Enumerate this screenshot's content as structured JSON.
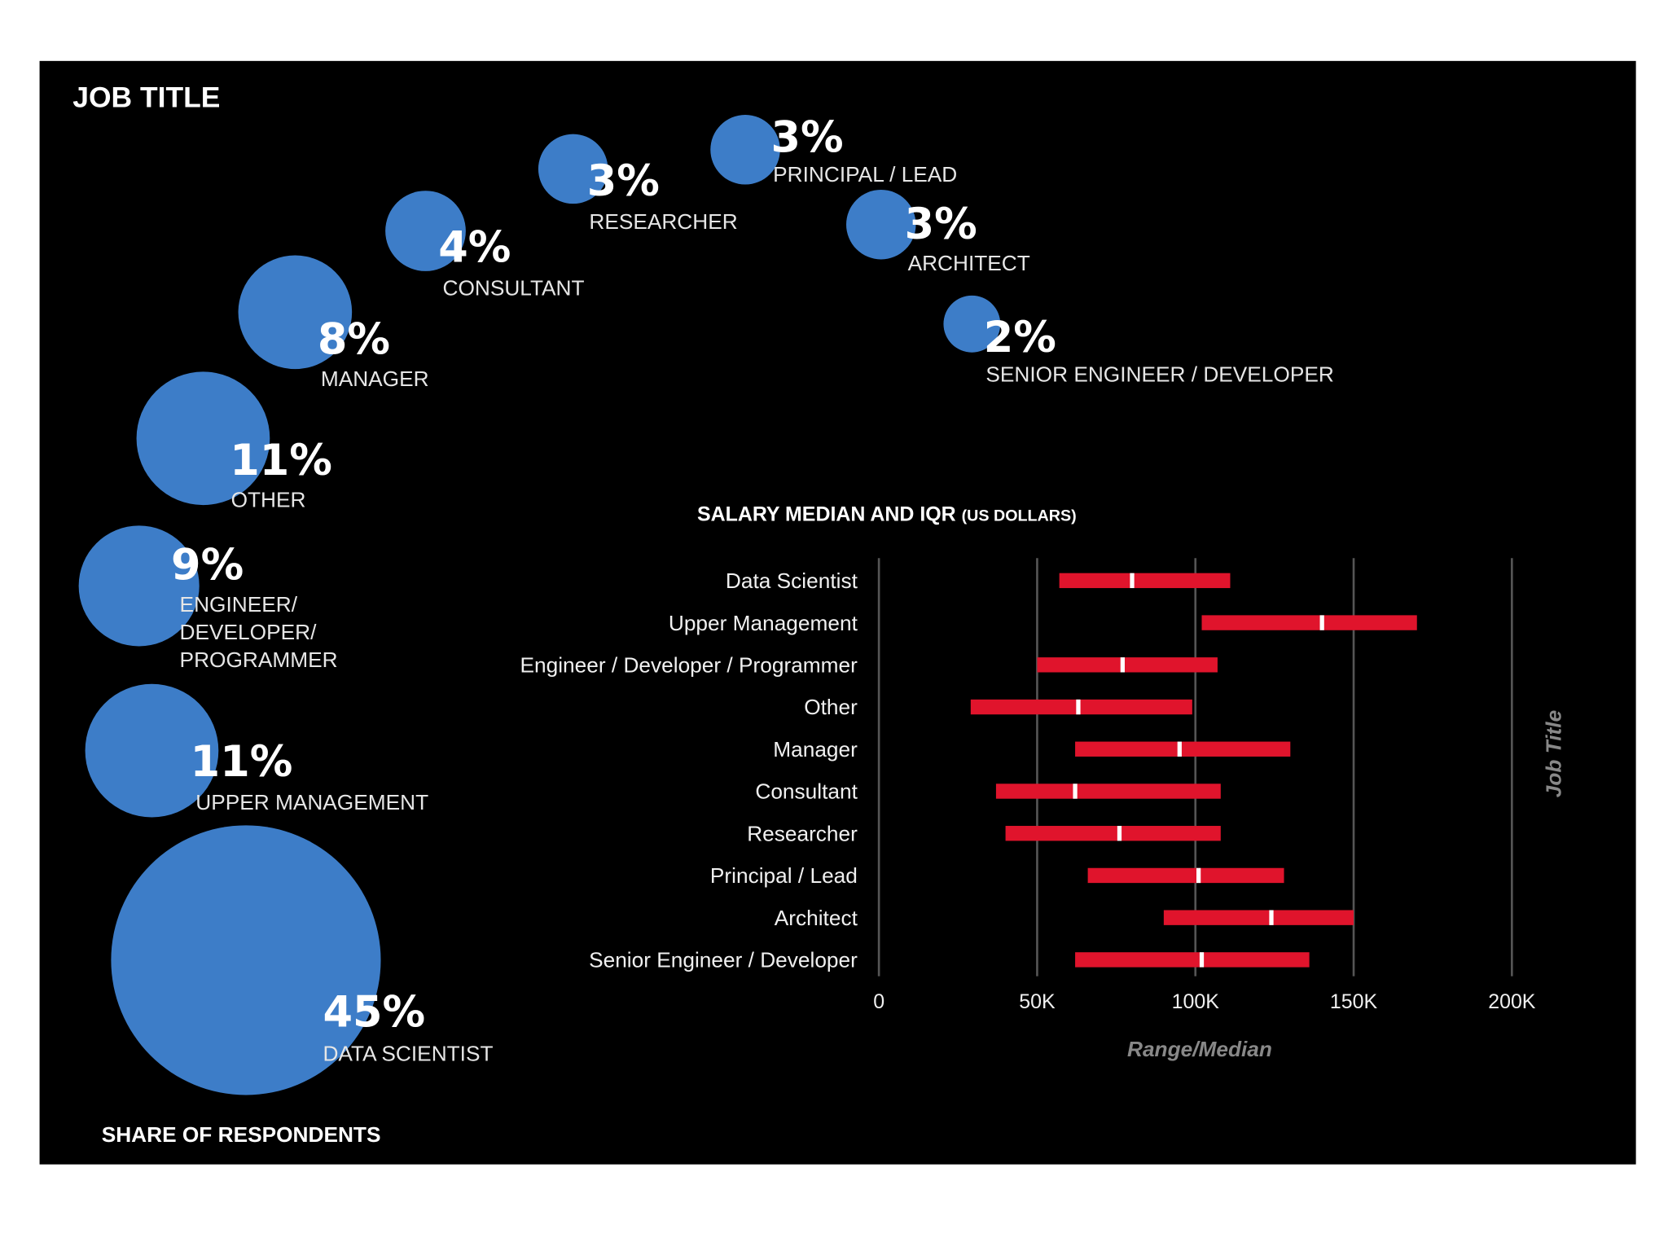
{
  "chart_data": [
    {
      "type": "bubble",
      "title": "JOB TITLE",
      "xlabel": "SHARE OF RESPONDENTS",
      "color": "#3d7dc8",
      "categories": [
        "DATA SCIENTIST",
        "UPPER MANAGEMENT",
        "ENGINEER/ DEVELOPER/ PROGRAMMER",
        "OTHER",
        "MANAGER",
        "CONSULTANT",
        "RESEARCHER",
        "PRINCIPAL / LEAD",
        "ARCHITECT",
        "SENIOR ENGINEER / DEVELOPER"
      ],
      "values": [
        45,
        11,
        9,
        11,
        8,
        4,
        3,
        3,
        3,
        2
      ],
      "value_labels": [
        "45%",
        "11%",
        "9%",
        "11%",
        "8%",
        "4%",
        "3%",
        "3%",
        "3%",
        "2%"
      ]
    },
    {
      "type": "range",
      "title": "SALARY MEDIAN AND IQR",
      "subtitle": "(US DOLLARS)",
      "xlabel": "Range/Median",
      "ylabel": "Job Title",
      "color": "#e0142c",
      "median_color": "#ffffff",
      "grid": true,
      "categories": [
        "Data Scientist",
        "Upper Management",
        "Engineer / Developer / Programmer",
        "Other",
        "Manager",
        "Consultant",
        "Researcher",
        "Principal / Lead",
        "Architect",
        "Senior Engineer / Developer"
      ],
      "low": [
        57000,
        102000,
        50000,
        29000,
        62000,
        37000,
        40000,
        66000,
        90000,
        62000
      ],
      "median": [
        80000,
        140000,
        77000,
        63000,
        95000,
        62000,
        76000,
        101000,
        124000,
        102000
      ],
      "high": [
        111000,
        170000,
        107000,
        99000,
        130000,
        108000,
        108000,
        128000,
        150000,
        136000
      ],
      "xlim": [
        0,
        200000
      ],
      "xticks": [
        0,
        {
          "value": 50000,
          "label": "50K"
        },
        {
          "value": 100000,
          "label": "100K"
        },
        {
          "value": 150000,
          "label": "150K"
        },
        {
          "value": 200000,
          "label": "200K"
        }
      ]
    }
  ]
}
